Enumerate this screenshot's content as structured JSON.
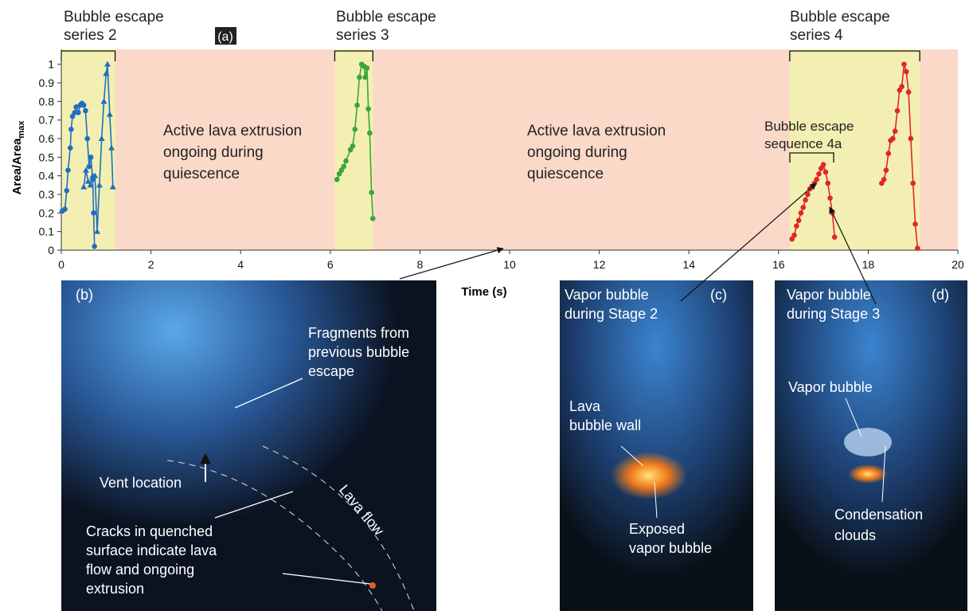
{
  "chart_data": {
    "type": "line",
    "panel_label": "(a)",
    "xlabel": "Time (s)",
    "ylabel": "Area/Area",
    "ylabel_sub": "max",
    "xlim": [
      0,
      20
    ],
    "xticks": [
      0,
      2,
      4,
      6,
      8,
      10,
      12,
      14,
      16,
      18,
      20
    ],
    "ylim": [
      0,
      1.08
    ],
    "yticks": [
      0,
      0.1,
      0.2,
      0.3,
      0.4,
      0.5,
      0.6,
      0.7,
      0.8,
      0.9,
      1
    ],
    "background_color": "#fbd9c9",
    "shaded_regions": [
      {
        "start": 0,
        "end": 1.2,
        "color": "#f3efb2"
      },
      {
        "start": 6.1,
        "end": 6.95,
        "color": "#f3efb2"
      },
      {
        "start": 16.25,
        "end": 19.15,
        "color": "#f3efb2"
      }
    ],
    "series": [
      {
        "color": "#1f6fbf",
        "marker": "circle",
        "x": [
          0.02,
          0.08,
          0.12,
          0.15,
          0.2,
          0.22,
          0.25,
          0.3,
          0.33,
          0.38,
          0.42,
          0.46,
          0.5,
          0.54,
          0.58,
          0.62,
          0.66,
          0.7,
          0.72,
          0.74
        ],
        "values": [
          0.21,
          0.22,
          0.32,
          0.43,
          0.55,
          0.65,
          0.72,
          0.74,
          0.77,
          0.74,
          0.78,
          0.79,
          0.78,
          0.75,
          0.6,
          0.45,
          0.5,
          0.38,
          0.2,
          0.02
        ]
      },
      {
        "color": "#1f6fbf",
        "marker": "triangle",
        "x": [
          0.5,
          0.55,
          0.6,
          0.65,
          0.7,
          0.75,
          0.8,
          0.85,
          0.9,
          0.95,
          1.0,
          1.03,
          1.08,
          1.12,
          1.15
        ],
        "values": [
          0.34,
          0.43,
          0.37,
          0.35,
          0.4,
          0.4,
          0.1,
          0.35,
          0.6,
          0.8,
          0.95,
          1.0,
          0.73,
          0.55,
          0.34
        ]
      },
      {
        "color": "#3aa63a",
        "marker": "circle",
        "x": [
          6.15,
          6.2,
          6.25,
          6.3,
          6.35,
          6.45,
          6.5,
          6.55,
          6.6,
          6.65,
          6.7,
          6.75,
          6.78,
          6.82,
          6.85,
          6.88,
          6.92,
          6.95
        ],
        "values": [
          0.38,
          0.41,
          0.43,
          0.45,
          0.48,
          0.54,
          0.56,
          0.65,
          0.78,
          0.93,
          1.0,
          0.99,
          0.93,
          0.98,
          0.76,
          0.63,
          0.31,
          0.17
        ]
      },
      {
        "color": "#e0262a",
        "marker": "circle",
        "x": [
          16.3,
          16.35,
          16.4,
          16.45,
          16.5,
          16.55,
          16.6,
          16.65,
          16.7,
          16.75,
          16.8,
          16.85,
          16.9,
          16.95,
          17.0,
          17.05,
          17.1,
          17.15,
          17.2,
          17.25
        ],
        "values": [
          0.06,
          0.08,
          0.13,
          0.16,
          0.2,
          0.23,
          0.27,
          0.3,
          0.33,
          0.34,
          0.36,
          0.38,
          0.41,
          0.44,
          0.46,
          0.42,
          0.36,
          0.28,
          0.2,
          0.07
        ]
      },
      {
        "color": "#e0262a",
        "marker": "circle",
        "x": [
          18.3,
          18.35,
          18.4,
          18.45,
          18.5,
          18.55,
          18.6,
          18.65,
          18.7,
          18.75,
          18.8,
          18.85,
          18.9,
          18.95,
          19.0,
          19.05,
          19.1
        ],
        "values": [
          0.36,
          0.38,
          0.43,
          0.52,
          0.59,
          0.6,
          0.64,
          0.75,
          0.86,
          0.88,
          1.0,
          0.96,
          0.85,
          0.6,
          0.36,
          0.14,
          0.01
        ]
      }
    ],
    "annotations": [
      {
        "lines": [
          "Bubble escape",
          "series 2"
        ]
      },
      {
        "lines": [
          "Bubble escape",
          "series 3"
        ]
      },
      {
        "lines": [
          "Bubble escape",
          "series 4"
        ]
      },
      {
        "lines": [
          "Active lava extrusion",
          "ongoing during",
          "quiescence"
        ]
      },
      {
        "lines": [
          "Active lava extrusion",
          "ongoing during",
          "quiescence"
        ]
      },
      {
        "lines": [
          "Bubble escape",
          "sequence 4a"
        ]
      }
    ]
  },
  "panels": {
    "b": {
      "label": "(b)",
      "fragments": [
        "Fragments from",
        "previous bubble",
        "escape"
      ],
      "vent": "Vent location",
      "flow": "Lava flow",
      "cracks": [
        "Cracks in quenched",
        "surface indicate lava",
        "flow and ongoing",
        "extrusion"
      ]
    },
    "c": {
      "label": "(c)",
      "title": [
        "Vapor bubble",
        "during Stage 2"
      ],
      "wall": [
        "Lava",
        "bubble wall"
      ],
      "exposed": [
        "Exposed",
        "vapor bubble"
      ]
    },
    "d": {
      "label": "(d)",
      "title": [
        "Vapor bubble",
        "during Stage 3"
      ],
      "bubble": "Vapor bubble",
      "clouds": [
        "Condensation",
        "clouds"
      ]
    }
  }
}
